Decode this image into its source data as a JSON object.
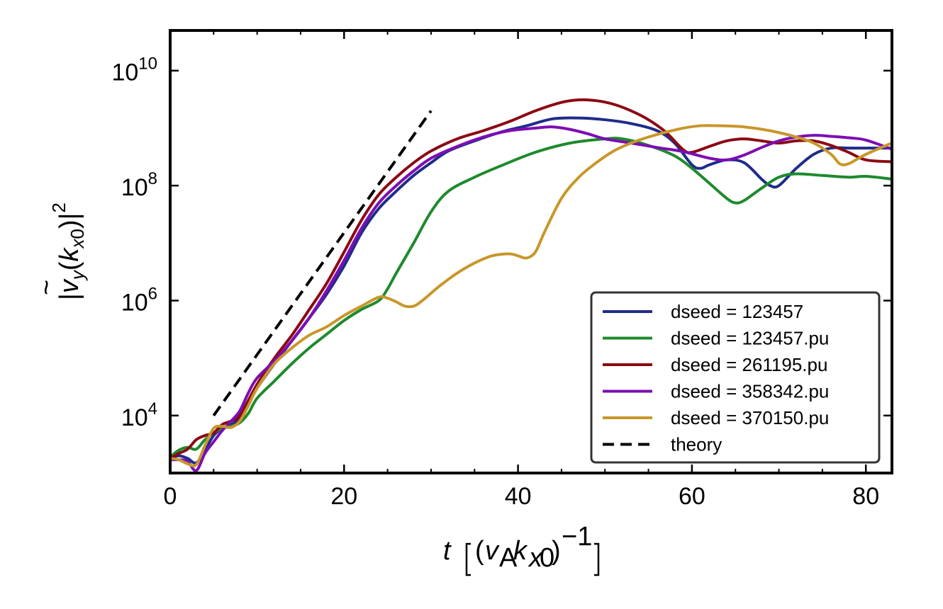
{
  "chart_data": {
    "type": "line",
    "xlabel": "t [(v_A k_x0)^-1]",
    "ylabel": "|ṽ_y(k_x0)|^2",
    "xlim": [
      0,
      83
    ],
    "ylim": [
      1000,
      50000000000
    ],
    "yscale": "log",
    "x_ticks": [
      0,
      20,
      40,
      60,
      80
    ],
    "y_ticks": [
      {
        "value": 10000,
        "base": "10",
        "exp": "4"
      },
      {
        "value": 1000000,
        "base": "10",
        "exp": "6"
      },
      {
        "value": 100000000,
        "base": "10",
        "exp": "8"
      },
      {
        "value": 10000000000,
        "base": "10",
        "exp": "10"
      }
    ],
    "legend_position": "lower-right",
    "grid": false,
    "series": [
      {
        "name": "dseed = 123457",
        "color": "#1f2c8a",
        "dash": "solid",
        "points": [
          [
            0,
            1800
          ],
          [
            1,
            2000
          ],
          [
            2,
            1800
          ],
          [
            3,
            1500
          ],
          [
            4,
            2500
          ],
          [
            5,
            4500
          ],
          [
            6,
            6000
          ],
          [
            7,
            7000
          ],
          [
            8,
            9000
          ],
          [
            10,
            30000
          ],
          [
            12,
            80000
          ],
          [
            14,
            200000
          ],
          [
            16,
            500000
          ],
          [
            18,
            1300000
          ],
          [
            20,
            4000000
          ],
          [
            22,
            15000000
          ],
          [
            24,
            40000000
          ],
          [
            26,
            80000000
          ],
          [
            28,
            150000000
          ],
          [
            30,
            250000000
          ],
          [
            32,
            400000000
          ],
          [
            35,
            600000000
          ],
          [
            38,
            850000000
          ],
          [
            41,
            1100000000
          ],
          [
            44,
            1450000000
          ],
          [
            47,
            1500000000
          ],
          [
            50,
            1400000000
          ],
          [
            53,
            1200000000
          ],
          [
            56,
            900000000
          ],
          [
            58,
            550000000
          ],
          [
            60,
            230000000
          ],
          [
            61,
            200000000
          ],
          [
            62,
            230000000
          ],
          [
            64,
            280000000
          ],
          [
            66,
            250000000
          ],
          [
            68,
            130000000
          ],
          [
            69,
            100000000
          ],
          [
            70,
            100000000
          ],
          [
            72,
            200000000
          ],
          [
            74,
            350000000
          ],
          [
            76,
            450000000
          ],
          [
            78,
            450000000
          ],
          [
            80,
            450000000
          ],
          [
            83,
            450000000
          ]
        ]
      },
      {
        "name": "dseed = 123457.pu",
        "color": "#1e8a2c",
        "dash": "solid",
        "points": [
          [
            0,
            1900
          ],
          [
            1,
            2500
          ],
          [
            2,
            2800
          ],
          [
            3,
            2600
          ],
          [
            4,
            3800
          ],
          [
            5,
            5000
          ],
          [
            6,
            6000
          ],
          [
            7,
            6500
          ],
          [
            8,
            7500
          ],
          [
            9,
            11000
          ],
          [
            10,
            20000
          ],
          [
            12,
            40000
          ],
          [
            14,
            80000
          ],
          [
            16,
            150000
          ],
          [
            18,
            260000
          ],
          [
            20,
            450000
          ],
          [
            22,
            700000
          ],
          [
            24,
            1000000
          ],
          [
            25,
            1600000
          ],
          [
            26,
            3000000
          ],
          [
            28,
            10000000
          ],
          [
            30,
            35000000
          ],
          [
            32,
            80000000
          ],
          [
            35,
            140000000
          ],
          [
            38,
            220000000
          ],
          [
            42,
            380000000
          ],
          [
            46,
            550000000
          ],
          [
            50,
            650000000
          ],
          [
            52,
            650000000
          ],
          [
            55,
            500000000
          ],
          [
            58,
            330000000
          ],
          [
            60,
            200000000
          ],
          [
            62,
            110000000
          ],
          [
            64,
            60000000
          ],
          [
            65,
            50000000
          ],
          [
            66,
            55000000
          ],
          [
            68,
            90000000
          ],
          [
            70,
            140000000
          ],
          [
            72,
            160000000
          ],
          [
            75,
            150000000
          ],
          [
            78,
            140000000
          ],
          [
            80,
            145000000
          ],
          [
            83,
            130000000
          ]
        ]
      },
      {
        "name": "dseed = 261195.pu",
        "color": "#8b0a14",
        "dash": "solid",
        "points": [
          [
            0,
            1800
          ],
          [
            1,
            2200
          ],
          [
            2,
            2600
          ],
          [
            3,
            3800
          ],
          [
            4,
            4500
          ],
          [
            5,
            5000
          ],
          [
            6,
            7000
          ],
          [
            7,
            8000
          ],
          [
            8,
            10000
          ],
          [
            10,
            35000
          ],
          [
            12,
            100000
          ],
          [
            14,
            250000
          ],
          [
            16,
            700000
          ],
          [
            18,
            2000000
          ],
          [
            20,
            7000000
          ],
          [
            22,
            25000000
          ],
          [
            24,
            70000000
          ],
          [
            26,
            140000000
          ],
          [
            28,
            250000000
          ],
          [
            30,
            400000000
          ],
          [
            33,
            650000000
          ],
          [
            36,
            900000000
          ],
          [
            39,
            1300000000
          ],
          [
            42,
            2000000000
          ],
          [
            45,
            2800000000
          ],
          [
            47,
            3100000000
          ],
          [
            49,
            3000000000
          ],
          [
            51,
            2600000000
          ],
          [
            53,
            2000000000
          ],
          [
            55,
            1400000000
          ],
          [
            57,
            850000000
          ],
          [
            59,
            420000000
          ],
          [
            60,
            380000000
          ],
          [
            62,
            480000000
          ],
          [
            64,
            600000000
          ],
          [
            66,
            650000000
          ],
          [
            68,
            600000000
          ],
          [
            70,
            550000000
          ],
          [
            72,
            600000000
          ],
          [
            74,
            600000000
          ],
          [
            76,
            500000000
          ],
          [
            78,
            380000000
          ],
          [
            80,
            280000000
          ],
          [
            83,
            260000000
          ]
        ]
      },
      {
        "name": "dseed = 358342.pu",
        "color": "#7d0db4",
        "dash": "solid",
        "points": [
          [
            0,
            1700
          ],
          [
            1,
            1700
          ],
          [
            2,
            1600
          ],
          [
            3,
            1100
          ],
          [
            4,
            2200
          ],
          [
            5,
            3500
          ],
          [
            6,
            5500
          ],
          [
            7,
            8000
          ],
          [
            8,
            12000
          ],
          [
            9,
            25000
          ],
          [
            10,
            45000
          ],
          [
            12,
            90000
          ],
          [
            14,
            200000
          ],
          [
            16,
            500000
          ],
          [
            18,
            1500000
          ],
          [
            20,
            5000000
          ],
          [
            22,
            18000000
          ],
          [
            24,
            50000000
          ],
          [
            26,
            100000000
          ],
          [
            28,
            180000000
          ],
          [
            30,
            300000000
          ],
          [
            33,
            480000000
          ],
          [
            36,
            700000000
          ],
          [
            39,
            900000000
          ],
          [
            42,
            1000000000
          ],
          [
            44,
            1050000000
          ],
          [
            46,
            950000000
          ],
          [
            48,
            800000000
          ],
          [
            50,
            650000000
          ],
          [
            53,
            550000000
          ],
          [
            56,
            460000000
          ],
          [
            59,
            390000000
          ],
          [
            62,
            300000000
          ],
          [
            64,
            280000000
          ],
          [
            66,
            340000000
          ],
          [
            68,
            460000000
          ],
          [
            70,
            600000000
          ],
          [
            72,
            700000000
          ],
          [
            74,
            750000000
          ],
          [
            76,
            720000000
          ],
          [
            78,
            680000000
          ],
          [
            80,
            620000000
          ],
          [
            83,
            430000000
          ]
        ]
      },
      {
        "name": "dseed = 370150.pu",
        "color": "#c8972a",
        "dash": "solid",
        "points": [
          [
            0,
            1800
          ],
          [
            1,
            1700
          ],
          [
            2,
            1450
          ],
          [
            3,
            1400
          ],
          [
            4,
            3000
          ],
          [
            5,
            6000
          ],
          [
            6,
            6500
          ],
          [
            7,
            6200
          ],
          [
            8,
            8000
          ],
          [
            9,
            15000
          ],
          [
            10,
            30000
          ],
          [
            12,
            80000
          ],
          [
            14,
            150000
          ],
          [
            16,
            250000
          ],
          [
            18,
            350000
          ],
          [
            20,
            550000
          ],
          [
            22,
            800000
          ],
          [
            24,
            1150000
          ],
          [
            25,
            1100000
          ],
          [
            26,
            950000
          ],
          [
            27,
            800000
          ],
          [
            28,
            800000
          ],
          [
            29,
            1000000
          ],
          [
            31,
            1800000
          ],
          [
            33,
            3000000
          ],
          [
            35,
            4500000
          ],
          [
            37,
            6000000
          ],
          [
            39,
            6500000
          ],
          [
            40,
            6000000
          ],
          [
            41,
            5500000
          ],
          [
            42,
            7000000
          ],
          [
            43,
            15000000
          ],
          [
            45,
            60000000
          ],
          [
            47,
            140000000
          ],
          [
            49,
            250000000
          ],
          [
            51,
            400000000
          ],
          [
            53,
            550000000
          ],
          [
            55,
            700000000
          ],
          [
            57,
            850000000
          ],
          [
            59,
            1000000000
          ],
          [
            61,
            1100000000
          ],
          [
            63,
            1100000000
          ],
          [
            66,
            1050000000
          ],
          [
            69,
            900000000
          ],
          [
            72,
            700000000
          ],
          [
            74,
            550000000
          ],
          [
            76,
            350000000
          ],
          [
            77,
            240000000
          ],
          [
            78,
            240000000
          ],
          [
            80,
            350000000
          ],
          [
            83,
            550000000
          ]
        ]
      },
      {
        "name": "theory",
        "color": "#000000",
        "dash": "dashed",
        "points": [
          [
            5,
            10000
          ],
          [
            30,
            2000000000
          ]
        ]
      }
    ]
  }
}
